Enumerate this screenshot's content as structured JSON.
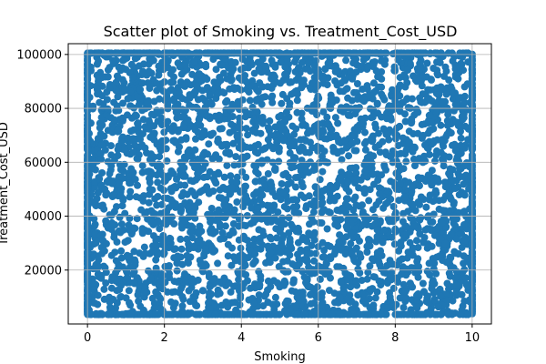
{
  "chart_data": {
    "type": "scatter",
    "title": "Scatter plot of Smoking vs. Treatment_Cost_USD",
    "xlabel": "Smoking",
    "ylabel": "Treatment_Cost_USD",
    "xlim": [
      -0.5,
      10.5
    ],
    "ylim": [
      0,
      104000
    ],
    "xticks": [
      0,
      2,
      4,
      6,
      8,
      10
    ],
    "yticks": [
      20000,
      40000,
      60000,
      80000,
      100000
    ],
    "xtick_labels": [
      "0",
      "2",
      "4",
      "6",
      "8",
      "10"
    ],
    "ytick_labels": [
      "20000",
      "40000",
      "60000",
      "80000",
      "100000"
    ],
    "grid": true,
    "point_color": "#1f77b4",
    "series": [
      {
        "x_range": [
          0,
          10
        ],
        "y_range": [
          3500,
          100500
        ]
      }
    ]
  }
}
